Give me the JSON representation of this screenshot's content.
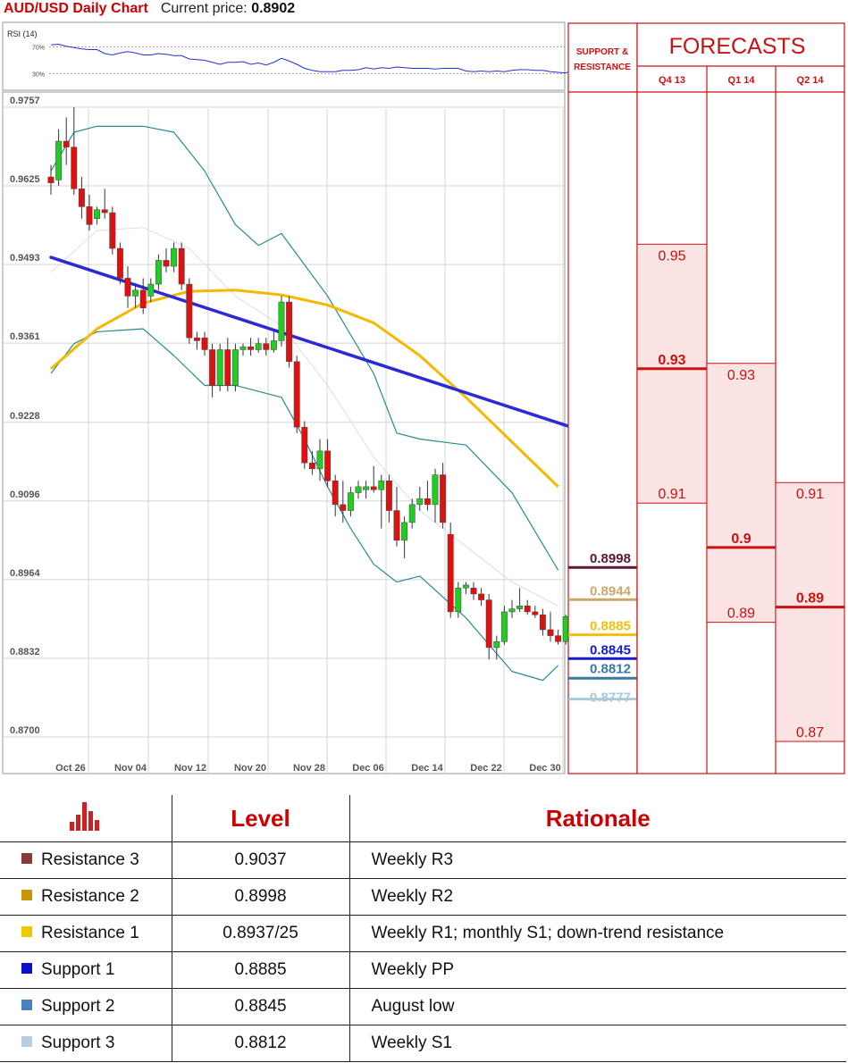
{
  "header": {
    "title": "AUD/USD Daily Chart",
    "price_label": "Current price:",
    "price_value": "0.8902"
  },
  "rsi": {
    "label": "RSI (14)",
    "levels": [
      "70%",
      "30%"
    ]
  },
  "chart_data": {
    "type": "candlestick",
    "title": "AUD/USD Daily Chart",
    "y_ticks": [
      "0.9757",
      "0.9625",
      "0.9493",
      "0.9361",
      "0.9228",
      "0.9096",
      "0.8964",
      "0.8832",
      "0.8700"
    ],
    "ylim": [
      0.87,
      0.9757
    ],
    "x_ticks": [
      "Oct 26",
      "Nov 04",
      "Nov 12",
      "Nov 20",
      "Nov 28",
      "Dec 06",
      "Dec 14",
      "Dec 22",
      "Dec 30"
    ],
    "grid": true,
    "candles": [
      {
        "o": 0.964,
        "h": 0.966,
        "l": 0.961,
        "c": 0.963
      },
      {
        "o": 0.9635,
        "h": 0.972,
        "l": 0.9625,
        "c": 0.97
      },
      {
        "o": 0.97,
        "h": 0.974,
        "l": 0.966,
        "c": 0.969
      },
      {
        "o": 0.969,
        "h": 0.9757,
        "l": 0.961,
        "c": 0.962
      },
      {
        "o": 0.962,
        "h": 0.964,
        "l": 0.957,
        "c": 0.959
      },
      {
        "o": 0.959,
        "h": 0.961,
        "l": 0.955,
        "c": 0.956
      },
      {
        "o": 0.957,
        "h": 0.959,
        "l": 0.956,
        "c": 0.9585
      },
      {
        "o": 0.9585,
        "h": 0.962,
        "l": 0.957,
        "c": 0.958
      },
      {
        "o": 0.958,
        "h": 0.959,
        "l": 0.951,
        "c": 0.952
      },
      {
        "o": 0.952,
        "h": 0.953,
        "l": 0.946,
        "c": 0.947
      },
      {
        "o": 0.947,
        "h": 0.949,
        "l": 0.942,
        "c": 0.944
      },
      {
        "o": 0.944,
        "h": 0.946,
        "l": 0.942,
        "c": 0.945
      },
      {
        "o": 0.945,
        "h": 0.947,
        "l": 0.941,
        "c": 0.942
      },
      {
        "o": 0.944,
        "h": 0.947,
        "l": 0.943,
        "c": 0.946
      },
      {
        "o": 0.946,
        "h": 0.951,
        "l": 0.945,
        "c": 0.95
      },
      {
        "o": 0.95,
        "h": 0.952,
        "l": 0.948,
        "c": 0.949
      },
      {
        "o": 0.949,
        "h": 0.953,
        "l": 0.948,
        "c": 0.952
      },
      {
        "o": 0.952,
        "h": 0.953,
        "l": 0.945,
        "c": 0.946
      },
      {
        "o": 0.946,
        "h": 0.947,
        "l": 0.936,
        "c": 0.937
      },
      {
        "o": 0.937,
        "h": 0.938,
        "l": 0.935,
        "c": 0.9365
      },
      {
        "o": 0.937,
        "h": 0.938,
        "l": 0.934,
        "c": 0.935
      },
      {
        "o": 0.935,
        "h": 0.936,
        "l": 0.927,
        "c": 0.929
      },
      {
        "o": 0.929,
        "h": 0.936,
        "l": 0.928,
        "c": 0.935
      },
      {
        "o": 0.935,
        "h": 0.937,
        "l": 0.928,
        "c": 0.929
      },
      {
        "o": 0.929,
        "h": 0.936,
        "l": 0.928,
        "c": 0.935
      },
      {
        "o": 0.935,
        "h": 0.936,
        "l": 0.934,
        "c": 0.9355
      },
      {
        "o": 0.9355,
        "h": 0.937,
        "l": 0.934,
        "c": 0.935
      },
      {
        "o": 0.935,
        "h": 0.937,
        "l": 0.9345,
        "c": 0.936
      },
      {
        "o": 0.936,
        "h": 0.937,
        "l": 0.934,
        "c": 0.935
      },
      {
        "o": 0.935,
        "h": 0.938,
        "l": 0.9345,
        "c": 0.9365
      },
      {
        "o": 0.9365,
        "h": 0.944,
        "l": 0.9355,
        "c": 0.943
      },
      {
        "o": 0.943,
        "h": 0.944,
        "l": 0.932,
        "c": 0.933
      },
      {
        "o": 0.933,
        "h": 0.934,
        "l": 0.921,
        "c": 0.922
      },
      {
        "o": 0.922,
        "h": 0.923,
        "l": 0.915,
        "c": 0.916
      },
      {
        "o": 0.916,
        "h": 0.918,
        "l": 0.914,
        "c": 0.915
      },
      {
        "o": 0.915,
        "h": 0.92,
        "l": 0.913,
        "c": 0.918
      },
      {
        "o": 0.918,
        "h": 0.92,
        "l": 0.912,
        "c": 0.913
      },
      {
        "o": 0.913,
        "h": 0.914,
        "l": 0.907,
        "c": 0.909
      },
      {
        "o": 0.909,
        "h": 0.913,
        "l": 0.906,
        "c": 0.908
      },
      {
        "o": 0.908,
        "h": 0.912,
        "l": 0.907,
        "c": 0.911
      },
      {
        "o": 0.911,
        "h": 0.913,
        "l": 0.91,
        "c": 0.912
      },
      {
        "o": 0.9115,
        "h": 0.913,
        "l": 0.91,
        "c": 0.912
      },
      {
        "o": 0.912,
        "h": 0.9155,
        "l": 0.911,
        "c": 0.9115
      },
      {
        "o": 0.9115,
        "h": 0.914,
        "l": 0.905,
        "c": 0.913
      },
      {
        "o": 0.913,
        "h": 0.914,
        "l": 0.906,
        "c": 0.908
      },
      {
        "o": 0.908,
        "h": 0.912,
        "l": 0.902,
        "c": 0.903
      },
      {
        "o": 0.903,
        "h": 0.907,
        "l": 0.9,
        "c": 0.906
      },
      {
        "o": 0.906,
        "h": 0.91,
        "l": 0.905,
        "c": 0.909
      },
      {
        "o": 0.909,
        "h": 0.912,
        "l": 0.908,
        "c": 0.91
      },
      {
        "o": 0.91,
        "h": 0.913,
        "l": 0.908,
        "c": 0.909
      },
      {
        "o": 0.909,
        "h": 0.915,
        "l": 0.906,
        "c": 0.914
      },
      {
        "o": 0.914,
        "h": 0.916,
        "l": 0.905,
        "c": 0.906
      },
      {
        "o": 0.904,
        "h": 0.906,
        "l": 0.89,
        "c": 0.891
      },
      {
        "o": 0.891,
        "h": 0.896,
        "l": 0.89,
        "c": 0.895
      },
      {
        "o": 0.895,
        "h": 0.896,
        "l": 0.894,
        "c": 0.8955
      },
      {
        "o": 0.895,
        "h": 0.896,
        "l": 0.893,
        "c": 0.894
      },
      {
        "o": 0.894,
        "h": 0.895,
        "l": 0.892,
        "c": 0.893
      },
      {
        "o": 0.893,
        "h": 0.894,
        "l": 0.883,
        "c": 0.885
      },
      {
        "o": 0.885,
        "h": 0.887,
        "l": 0.883,
        "c": 0.886
      },
      {
        "o": 0.886,
        "h": 0.892,
        "l": 0.8855,
        "c": 0.891
      },
      {
        "o": 0.891,
        "h": 0.893,
        "l": 0.89,
        "c": 0.8915
      },
      {
        "o": 0.8915,
        "h": 0.895,
        "l": 0.891,
        "c": 0.892
      },
      {
        "o": 0.892,
        "h": 0.893,
        "l": 0.8905,
        "c": 0.891
      },
      {
        "o": 0.891,
        "h": 0.892,
        "l": 0.89,
        "c": 0.8905
      },
      {
        "o": 0.8905,
        "h": 0.8915,
        "l": 0.887,
        "c": 0.888
      },
      {
        "o": 0.888,
        "h": 0.891,
        "l": 0.886,
        "c": 0.887
      },
      {
        "o": 0.887,
        "h": 0.888,
        "l": 0.8855,
        "c": 0.886
      },
      {
        "o": 0.886,
        "h": 0.8905,
        "l": 0.8855,
        "c": 0.8902
      }
    ],
    "sma200": [
      0.9505,
      0.9222
    ],
    "sma50": [
      [
        0,
        0.9318
      ],
      [
        6,
        0.9385
      ],
      [
        12,
        0.9428
      ],
      [
        18,
        0.9448
      ],
      [
        24,
        0.945
      ],
      [
        30,
        0.9442
      ],
      [
        36,
        0.9425
      ],
      [
        42,
        0.9395
      ],
      [
        48,
        0.934
      ],
      [
        54,
        0.927
      ],
      [
        60,
        0.9195
      ],
      [
        66,
        0.912
      ]
    ],
    "bb_upper": [
      [
        0,
        0.965
      ],
      [
        3,
        0.9715
      ],
      [
        6,
        0.9725
      ],
      [
        12,
        0.9725
      ],
      [
        16,
        0.9715
      ],
      [
        20,
        0.965
      ],
      [
        24,
        0.956
      ],
      [
        27,
        0.9525
      ],
      [
        30,
        0.9545
      ],
      [
        36,
        0.944
      ],
      [
        42,
        0.931
      ],
      [
        45,
        0.921
      ],
      [
        48,
        0.92
      ],
      [
        54,
        0.919
      ],
      [
        60,
        0.911
      ],
      [
        66,
        0.898
      ]
    ],
    "bb_lower": [
      [
        0,
        0.931
      ],
      [
        3,
        0.936
      ],
      [
        6,
        0.938
      ],
      [
        12,
        0.9385
      ],
      [
        16,
        0.934
      ],
      [
        20,
        0.929
      ],
      [
        24,
        0.929
      ],
      [
        30,
        0.927
      ],
      [
        33,
        0.92
      ],
      [
        36,
        0.912
      ],
      [
        39,
        0.905
      ],
      [
        42,
        0.899
      ],
      [
        45,
        0.896
      ],
      [
        48,
        0.897
      ],
      [
        54,
        0.89
      ],
      [
        60,
        0.881
      ],
      [
        64,
        0.8795
      ],
      [
        66,
        0.882
      ]
    ],
    "bb_middle": [
      [
        0,
        0.948
      ],
      [
        6,
        0.955
      ],
      [
        12,
        0.9555
      ],
      [
        18,
        0.952
      ],
      [
        24,
        0.944
      ],
      [
        30,
        0.939
      ],
      [
        36,
        0.929
      ],
      [
        42,
        0.917
      ],
      [
        48,
        0.908
      ],
      [
        54,
        0.902
      ],
      [
        60,
        0.896
      ],
      [
        66,
        0.892
      ]
    ],
    "rsi_values": [
      73,
      74,
      71,
      69,
      67,
      66,
      66,
      60,
      58,
      61,
      63,
      61,
      58,
      58,
      60,
      59,
      57,
      57,
      52,
      51,
      50,
      47,
      44,
      47,
      47,
      48,
      44,
      46,
      43,
      47,
      53,
      49,
      44,
      38,
      35,
      33,
      33,
      33,
      35,
      35,
      36,
      39,
      37,
      39,
      38,
      40,
      39,
      38,
      38,
      38,
      37,
      38,
      38,
      38,
      34,
      33,
      34,
      33,
      34,
      33,
      35,
      36,
      36,
      35,
      35,
      33,
      32,
      31,
      36
    ]
  },
  "sr_column": {
    "header": "SUPPORT & RESISTANCE",
    "levels": [
      {
        "label": "0.8998",
        "value": 0.8998,
        "color": "#5a1636"
      },
      {
        "label": "0.8944",
        "value": 0.8944,
        "color": "#c8a96a"
      },
      {
        "label": "0.8885",
        "value": 0.8885,
        "color": "#f0c010"
      },
      {
        "label": "0.8845",
        "value": 0.8845,
        "color": "#1a1acc"
      },
      {
        "label": "0.8812",
        "value": 0.8812,
        "color": "#3a7aa0"
      },
      {
        "label": "0.8777",
        "value": 0.8777,
        "color": "#a8cdd8"
      }
    ]
  },
  "forecasts": {
    "title": "FORECASTS",
    "columns": [
      {
        "label": "Q4 13",
        "high": "0.95",
        "mid": "0.93",
        "low": "0.91",
        "high_v": 0.95,
        "mid_v": 0.93,
        "low_v": 0.91
      },
      {
        "label": "Q1 14",
        "high": "0.93",
        "mid": "0.9",
        "low": "0.89",
        "high_v": 0.93,
        "mid_v": 0.9,
        "low_v": 0.89
      },
      {
        "label": "Q2 14",
        "high": "0.91",
        "mid": "0.89",
        "low": "0.87",
        "high_v": 0.91,
        "mid_v": 0.89,
        "low_v": 0.87
      }
    ]
  },
  "level_table": {
    "headers": {
      "level": "Level",
      "rationale": "Rationale"
    },
    "icon": "bar-chart-icon",
    "rows": [
      {
        "name": "Resistance 3",
        "value": "0.9037",
        "rationale": "Weekly R3",
        "color": "#8b3a3a"
      },
      {
        "name": "Resistance 2",
        "value": "0.8998",
        "rationale": "Weekly R2",
        "color": "#c8960a"
      },
      {
        "name": "Resistance 1",
        "value": "0.8937/25",
        "rationale": "Weekly R1; monthly S1; down-trend resistance",
        "color": "#f0c800"
      },
      {
        "name": "Support 1",
        "value": "0.8885",
        "rationale": "Weekly PP",
        "color": "#0a10cc"
      },
      {
        "name": "Support 2",
        "value": "0.8845",
        "rationale": "August low",
        "color": "#4a80c0"
      },
      {
        "name": "Support 3",
        "value": "0.8812",
        "rationale": "Weekly S1",
        "color": "#b8cce4"
      }
    ]
  }
}
